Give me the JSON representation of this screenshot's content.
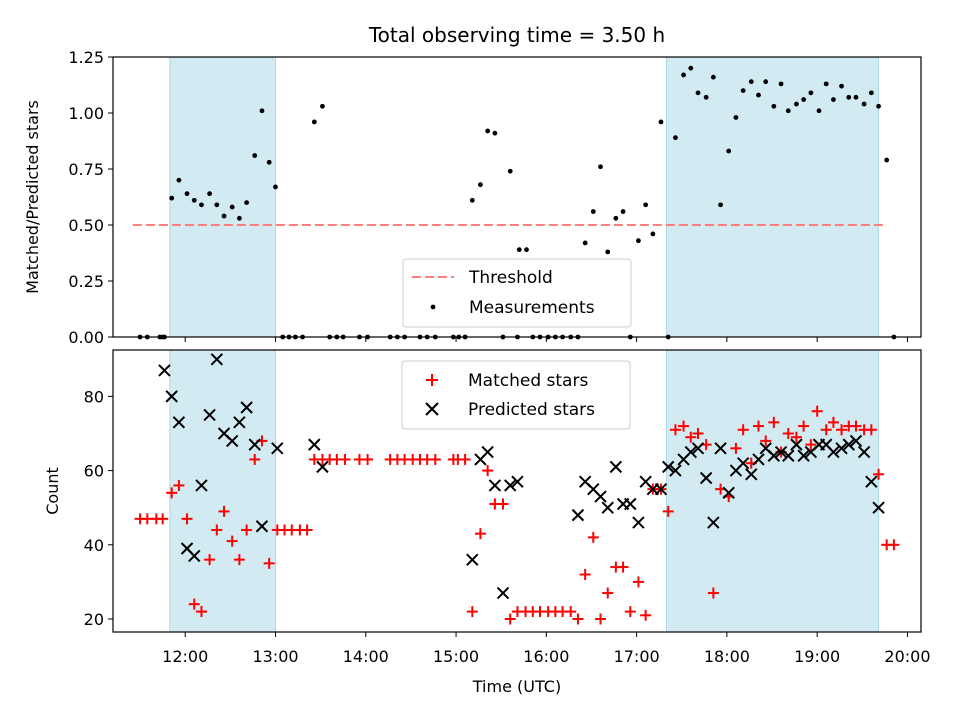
{
  "title": "Total observing time = 3.50 h",
  "colors": {
    "shade": "#add8e6",
    "threshold": "#ff7f7f",
    "measurements": "#000000",
    "matched": "#ff0000",
    "predicted": "#000000"
  },
  "chart_data": [
    {
      "type": "scatter",
      "ylabel": "Matched/Predicted stars",
      "xlim": [
        11.2,
        20.15
      ],
      "ylim": [
        0,
        1.25
      ],
      "yticks": [
        "0.00",
        "0.25",
        "0.50",
        "0.75",
        "1.00",
        "1.25"
      ],
      "shaded_intervals": [
        [
          11.83,
          13.0
        ],
        [
          17.33,
          19.68
        ]
      ],
      "legend": {
        "position": "lower-center",
        "entries": [
          "Threshold",
          "Measurements"
        ]
      },
      "series": [
        {
          "name": "Threshold",
          "kind": "dashed-line",
          "x": [
            11.42,
            19.75
          ],
          "y": [
            0.5,
            0.5
          ]
        },
        {
          "name": "Measurements",
          "kind": "dots",
          "points": [
            [
              11.5,
              0
            ],
            [
              11.58,
              0
            ],
            [
              11.72,
              0
            ],
            [
              11.75,
              0
            ],
            [
              11.77,
              0
            ],
            [
              11.85,
              0.62
            ],
            [
              11.93,
              0.7
            ],
            [
              12.02,
              0.64
            ],
            [
              12.1,
              0.61
            ],
            [
              12.18,
              0.59
            ],
            [
              12.27,
              0.64
            ],
            [
              12.35,
              0.59
            ],
            [
              12.43,
              0.54
            ],
            [
              12.52,
              0.58
            ],
            [
              12.6,
              0.53
            ],
            [
              12.68,
              0.6
            ],
            [
              12.77,
              0.81
            ],
            [
              12.85,
              1.01
            ],
            [
              12.93,
              0.78
            ],
            [
              13.0,
              0.67
            ],
            [
              13.08,
              0
            ],
            [
              13.15,
              0
            ],
            [
              13.22,
              0
            ],
            [
              13.3,
              0
            ],
            [
              13.43,
              0.96
            ],
            [
              13.52,
              1.03
            ],
            [
              13.6,
              0
            ],
            [
              13.68,
              0
            ],
            [
              13.75,
              0
            ],
            [
              13.93,
              0
            ],
            [
              14.02,
              0
            ],
            [
              14.27,
              0
            ],
            [
              14.35,
              0
            ],
            [
              14.43,
              0
            ],
            [
              14.6,
              0
            ],
            [
              14.68,
              0
            ],
            [
              14.77,
              0
            ],
            [
              14.97,
              0
            ],
            [
              15.03,
              0
            ],
            [
              15.1,
              0
            ],
            [
              15.18,
              0.61
            ],
            [
              15.27,
              0.68
            ],
            [
              15.35,
              0.92
            ],
            [
              15.43,
              0.91
            ],
            [
              15.52,
              0
            ],
            [
              15.6,
              0.74
            ],
            [
              15.68,
              0
            ],
            [
              15.7,
              0.39
            ],
            [
              15.78,
              0.39
            ],
            [
              15.85,
              0
            ],
            [
              15.93,
              0
            ],
            [
              16.02,
              0
            ],
            [
              16.1,
              0
            ],
            [
              16.18,
              0
            ],
            [
              16.27,
              0
            ],
            [
              16.35,
              0
            ],
            [
              16.43,
              0.42
            ],
            [
              16.52,
              0.56
            ],
            [
              16.6,
              0.76
            ],
            [
              16.68,
              0.38
            ],
            [
              16.77,
              0.53
            ],
            [
              16.85,
              0.56
            ],
            [
              16.93,
              0
            ],
            [
              17.02,
              0.43
            ],
            [
              17.1,
              0.59
            ],
            [
              17.18,
              0.46
            ],
            [
              17.27,
              0.96
            ],
            [
              17.35,
              0
            ],
            [
              17.43,
              0.89
            ],
            [
              17.52,
              1.17
            ],
            [
              17.6,
              1.2
            ],
            [
              17.68,
              1.09
            ],
            [
              17.77,
              1.07
            ],
            [
              17.85,
              1.16
            ],
            [
              17.93,
              0.59
            ],
            [
              18.02,
              0.83
            ],
            [
              18.1,
              0.98
            ],
            [
              18.18,
              1.1
            ],
            [
              18.27,
              1.14
            ],
            [
              18.35,
              1.08
            ],
            [
              18.43,
              1.14
            ],
            [
              18.52,
              1.03
            ],
            [
              18.6,
              1.13
            ],
            [
              18.68,
              1.01
            ],
            [
              18.77,
              1.04
            ],
            [
              18.85,
              1.06
            ],
            [
              18.93,
              1.09
            ],
            [
              19.02,
              1.01
            ],
            [
              19.1,
              1.13
            ],
            [
              19.18,
              1.06
            ],
            [
              19.27,
              1.12
            ],
            [
              19.35,
              1.07
            ],
            [
              19.43,
              1.07
            ],
            [
              19.52,
              1.04
            ],
            [
              19.6,
              1.09
            ],
            [
              19.68,
              1.03
            ],
            [
              19.77,
              0.79
            ],
            [
              19.85,
              0
            ]
          ]
        }
      ]
    },
    {
      "type": "scatter",
      "xlabel": "Time (UTC)",
      "ylabel": "Count",
      "xlim": [
        11.2,
        20.15
      ],
      "ylim": [
        16.5,
        92.5
      ],
      "yticks": [
        "20",
        "40",
        "60",
        "80"
      ],
      "xticks": [
        "12:00",
        "13:00",
        "14:00",
        "15:00",
        "16:00",
        "17:00",
        "18:00",
        "19:00",
        "20:00"
      ],
      "shaded_intervals": [
        [
          11.83,
          13.0
        ],
        [
          17.33,
          19.68
        ]
      ],
      "legend": {
        "position": "top-center",
        "entries": [
          "Matched stars",
          "Predicted stars"
        ]
      },
      "series": [
        {
          "name": "Matched stars",
          "marker": "+",
          "points": [
            [
              11.5,
              47
            ],
            [
              11.58,
              47
            ],
            [
              11.68,
              47
            ],
            [
              11.75,
              47
            ],
            [
              11.85,
              54
            ],
            [
              11.93,
              56
            ],
            [
              12.02,
              47
            ],
            [
              12.1,
              24
            ],
            [
              12.18,
              22
            ],
            [
              12.27,
              36
            ],
            [
              12.35,
              44
            ],
            [
              12.43,
              49
            ],
            [
              12.52,
              41
            ],
            [
              12.6,
              36
            ],
            [
              12.68,
              44
            ],
            [
              12.77,
              63
            ],
            [
              12.85,
              68
            ],
            [
              12.93,
              35
            ],
            [
              13.02,
              44
            ],
            [
              13.1,
              44
            ],
            [
              13.18,
              44
            ],
            [
              13.27,
              44
            ],
            [
              13.35,
              44
            ],
            [
              13.43,
              63
            ],
            [
              13.52,
              63
            ],
            [
              13.6,
              63
            ],
            [
              13.68,
              63
            ],
            [
              13.77,
              63
            ],
            [
              13.93,
              63
            ],
            [
              14.02,
              63
            ],
            [
              14.27,
              63
            ],
            [
              14.35,
              63
            ],
            [
              14.43,
              63
            ],
            [
              14.52,
              63
            ],
            [
              14.6,
              63
            ],
            [
              14.68,
              63
            ],
            [
              14.77,
              63
            ],
            [
              14.97,
              63
            ],
            [
              15.02,
              63
            ],
            [
              15.1,
              63
            ],
            [
              15.18,
              22
            ],
            [
              15.27,
              43
            ],
            [
              15.35,
              60
            ],
            [
              15.43,
              51
            ],
            [
              15.52,
              51
            ],
            [
              15.6,
              20
            ],
            [
              15.68,
              22
            ],
            [
              15.77,
              22
            ],
            [
              15.85,
              22
            ],
            [
              15.93,
              22
            ],
            [
              16.02,
              22
            ],
            [
              16.1,
              22
            ],
            [
              16.18,
              22
            ],
            [
              16.27,
              22
            ],
            [
              16.35,
              20
            ],
            [
              16.43,
              32
            ],
            [
              16.52,
              42
            ],
            [
              16.6,
              20
            ],
            [
              16.68,
              27
            ],
            [
              16.77,
              34
            ],
            [
              16.85,
              34
            ],
            [
              16.93,
              22
            ],
            [
              17.02,
              30
            ],
            [
              17.1,
              21
            ],
            [
              17.18,
              55
            ],
            [
              17.27,
              55
            ],
            [
              17.35,
              49
            ],
            [
              17.43,
              71
            ],
            [
              17.52,
              72
            ],
            [
              17.6,
              69
            ],
            [
              17.68,
              70
            ],
            [
              17.77,
              67
            ],
            [
              17.85,
              27
            ],
            [
              17.93,
              55
            ],
            [
              18.02,
              53
            ],
            [
              18.1,
              66
            ],
            [
              18.18,
              71
            ],
            [
              18.27,
              62
            ],
            [
              18.35,
              72
            ],
            [
              18.43,
              68
            ],
            [
              18.52,
              73
            ],
            [
              18.6,
              65
            ],
            [
              18.68,
              70
            ],
            [
              18.77,
              69
            ],
            [
              18.85,
              72
            ],
            [
              18.93,
              67
            ],
            [
              19.0,
              76
            ],
            [
              19.1,
              71
            ],
            [
              19.18,
              73
            ],
            [
              19.27,
              71
            ],
            [
              19.35,
              72
            ],
            [
              19.43,
              72
            ],
            [
              19.52,
              71
            ],
            [
              19.6,
              71
            ],
            [
              19.68,
              59
            ],
            [
              19.77,
              40
            ],
            [
              19.85,
              40
            ]
          ]
        },
        {
          "name": "Predicted stars",
          "marker": "x",
          "points": [
            [
              11.77,
              87
            ],
            [
              11.85,
              80
            ],
            [
              11.93,
              73
            ],
            [
              12.02,
              39
            ],
            [
              12.1,
              37
            ],
            [
              12.18,
              56
            ],
            [
              12.27,
              75
            ],
            [
              12.35,
              90
            ],
            [
              12.43,
              70
            ],
            [
              12.52,
              68
            ],
            [
              12.6,
              73
            ],
            [
              12.68,
              77
            ],
            [
              12.77,
              67
            ],
            [
              12.85,
              45
            ],
            [
              13.02,
              66
            ],
            [
              13.43,
              67
            ],
            [
              13.52,
              61
            ],
            [
              15.18,
              36
            ],
            [
              15.27,
              63
            ],
            [
              15.35,
              65
            ],
            [
              15.43,
              56
            ],
            [
              15.52,
              27
            ],
            [
              15.6,
              56
            ],
            [
              15.68,
              57
            ],
            [
              16.35,
              48
            ],
            [
              16.43,
              57
            ],
            [
              16.52,
              55
            ],
            [
              16.6,
              53
            ],
            [
              16.68,
              50
            ],
            [
              16.77,
              61
            ],
            [
              16.85,
              51
            ],
            [
              16.93,
              51
            ],
            [
              17.02,
              46
            ],
            [
              17.1,
              57
            ],
            [
              17.18,
              55
            ],
            [
              17.27,
              55
            ],
            [
              17.35,
              61
            ],
            [
              17.43,
              60
            ],
            [
              17.52,
              63
            ],
            [
              17.6,
              65
            ],
            [
              17.68,
              66
            ],
            [
              17.77,
              58
            ],
            [
              17.85,
              46
            ],
            [
              17.93,
              66
            ],
            [
              18.02,
              54
            ],
            [
              18.1,
              60
            ],
            [
              18.18,
              62
            ],
            [
              18.27,
              59
            ],
            [
              18.35,
              63
            ],
            [
              18.43,
              66
            ],
            [
              18.52,
              64
            ],
            [
              18.6,
              65
            ],
            [
              18.68,
              64
            ],
            [
              18.77,
              67
            ],
            [
              18.85,
              64
            ],
            [
              18.93,
              65
            ],
            [
              19.02,
              67
            ],
            [
              19.1,
              67
            ],
            [
              19.18,
              65
            ],
            [
              19.27,
              66
            ],
            [
              19.35,
              67
            ],
            [
              19.43,
              68
            ],
            [
              19.52,
              65
            ],
            [
              19.6,
              57
            ],
            [
              19.68,
              50
            ]
          ]
        }
      ]
    }
  ]
}
